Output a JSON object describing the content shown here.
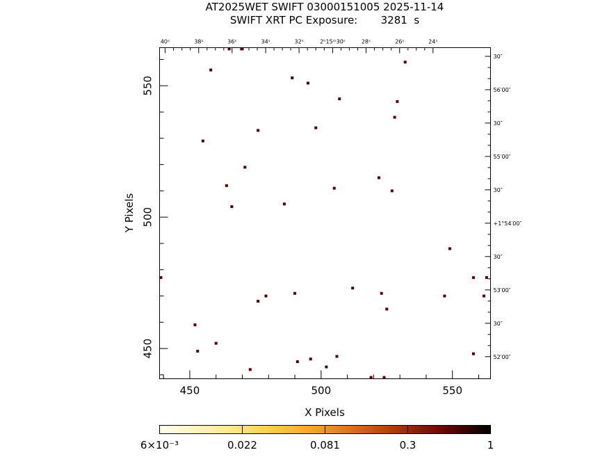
{
  "chart_data": {
    "type": "scatter",
    "title_line1": "AT2025WET SWIFT 03000151005 2025-11-14",
    "title_line2": "SWIFT XRT PC Exposure:       3281  s",
    "xlabel": "X Pixels",
    "ylabel": "Y Pixels",
    "xlim": [
      438.5,
      564.5
    ],
    "ylim": [
      438.5,
      564.5
    ],
    "x_ticks": [
      450,
      500,
      550
    ],
    "y_ticks": [
      450,
      500,
      550
    ],
    "x_tick_labels": [
      "450",
      "500",
      "550"
    ],
    "y_tick_labels": [
      "450",
      "500",
      "550"
    ],
    "ra_labels": [
      {
        "x": 440.6,
        "text": "40ˢ"
      },
      {
        "x": 453.4,
        "text": "38ˢ"
      },
      {
        "x": 466.1,
        "text": "36ˢ"
      },
      {
        "x": 478.9,
        "text": "34ˢ"
      },
      {
        "x": 491.6,
        "text": "32ˢ"
      },
      {
        "x": 504.4,
        "text": "2ʰ15ᵐ30ˢ"
      },
      {
        "x": 517.1,
        "text": "28ˢ"
      },
      {
        "x": 529.9,
        "text": "26ˢ"
      },
      {
        "x": 542.6,
        "text": "24ˢ"
      }
    ],
    "dec_labels": [
      {
        "y": 561.2,
        "text": "30″"
      },
      {
        "y": 548.5,
        "text": "56′00″"
      },
      {
        "y": 535.8,
        "text": "30″"
      },
      {
        "y": 523.1,
        "text": "55′00″"
      },
      {
        "y": 510.4,
        "text": "30″"
      },
      {
        "y": 497.7,
        "text": "+1°54′00″"
      },
      {
        "y": 485.0,
        "text": "30″"
      },
      {
        "y": 472.3,
        "text": "53′00″"
      },
      {
        "y": 459.6,
        "text": "30″"
      },
      {
        "y": 446.9,
        "text": "52′00″"
      }
    ],
    "points": [
      {
        "x": 465,
        "y": 564
      },
      {
        "x": 470,
        "y": 564
      },
      {
        "x": 458,
        "y": 556
      },
      {
        "x": 489,
        "y": 553
      },
      {
        "x": 495,
        "y": 551
      },
      {
        "x": 507,
        "y": 545
      },
      {
        "x": 529,
        "y": 544
      },
      {
        "x": 532,
        "y": 559
      },
      {
        "x": 528,
        "y": 538
      },
      {
        "x": 476,
        "y": 533
      },
      {
        "x": 498,
        "y": 534
      },
      {
        "x": 455,
        "y": 529
      },
      {
        "x": 471,
        "y": 519
      },
      {
        "x": 522,
        "y": 515
      },
      {
        "x": 464,
        "y": 512
      },
      {
        "x": 505,
        "y": 511
      },
      {
        "x": 527,
        "y": 510
      },
      {
        "x": 486,
        "y": 505
      },
      {
        "x": 466,
        "y": 504
      },
      {
        "x": 549,
        "y": 488
      },
      {
        "x": 439,
        "y": 477
      },
      {
        "x": 558,
        "y": 477
      },
      {
        "x": 563,
        "y": 477
      },
      {
        "x": 512,
        "y": 473
      },
      {
        "x": 490,
        "y": 471
      },
      {
        "x": 523,
        "y": 471
      },
      {
        "x": 479,
        "y": 470
      },
      {
        "x": 547,
        "y": 470
      },
      {
        "x": 562,
        "y": 470
      },
      {
        "x": 476,
        "y": 468
      },
      {
        "x": 525,
        "y": 465
      },
      {
        "x": 452,
        "y": 459
      },
      {
        "x": 460,
        "y": 452
      },
      {
        "x": 453,
        "y": 449
      },
      {
        "x": 558,
        "y": 448
      },
      {
        "x": 506,
        "y": 447
      },
      {
        "x": 496,
        "y": 446
      },
      {
        "x": 491,
        "y": 445
      },
      {
        "x": 502,
        "y": 443
      },
      {
        "x": 473,
        "y": 442
      },
      {
        "x": 519,
        "y": 439
      },
      {
        "x": 524,
        "y": 439
      }
    ],
    "point_color": "#5a0000",
    "colorbar": {
      "tick_labels": [
        "6×10⁻³",
        "0.022",
        "0.081",
        "0.3",
        "1"
      ],
      "colors": [
        "#ffffe8",
        "#ffe88a",
        "#f4a02e",
        "#c84a10",
        "#7a0c04",
        "#000000"
      ]
    }
  }
}
